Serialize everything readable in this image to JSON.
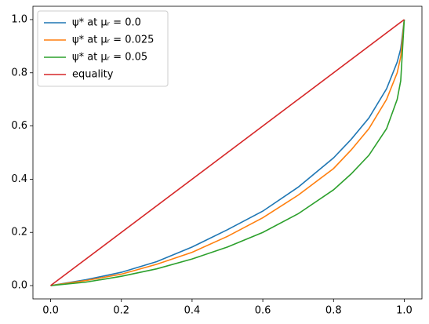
{
  "chart_data": {
    "type": "line",
    "series": [
      {
        "name": "ψ* at μᵣ = 0.0",
        "color": "#1f77b4",
        "x": [
          0,
          0.1,
          0.2,
          0.3,
          0.4,
          0.5,
          0.6,
          0.7,
          0.8,
          0.85,
          0.9,
          0.95,
          0.98,
          0.99,
          1.0
        ],
        "values": [
          0,
          0.022,
          0.05,
          0.09,
          0.145,
          0.21,
          0.28,
          0.37,
          0.48,
          0.55,
          0.63,
          0.74,
          0.84,
          0.89,
          1.0
        ]
      },
      {
        "name": "ψ* at μᵣ = 0.025",
        "color": "#ff7f0e",
        "x": [
          0,
          0.1,
          0.2,
          0.3,
          0.4,
          0.5,
          0.6,
          0.7,
          0.8,
          0.85,
          0.9,
          0.95,
          0.98,
          0.99,
          1.0
        ],
        "values": [
          0,
          0.019,
          0.043,
          0.08,
          0.125,
          0.185,
          0.255,
          0.34,
          0.44,
          0.51,
          0.59,
          0.7,
          0.8,
          0.86,
          1.0
        ]
      },
      {
        "name": "ψ* at μᵣ = 0.05",
        "color": "#2ca02c",
        "x": [
          0,
          0.1,
          0.2,
          0.3,
          0.4,
          0.5,
          0.6,
          0.7,
          0.8,
          0.85,
          0.9,
          0.95,
          0.98,
          0.99,
          1.0
        ],
        "values": [
          0,
          0.013,
          0.035,
          0.063,
          0.1,
          0.145,
          0.2,
          0.27,
          0.36,
          0.42,
          0.49,
          0.59,
          0.7,
          0.77,
          1.0
        ]
      },
      {
        "name": "equality",
        "color": "#d62728",
        "x": [
          0,
          1
        ],
        "values": [
          0,
          1
        ]
      }
    ],
    "xlim": [
      -0.05,
      1.05
    ],
    "ylim": [
      -0.05,
      1.05
    ],
    "xticks": [
      {
        "value": 0,
        "label": "0.0"
      },
      {
        "value": 0.2,
        "label": "0.2"
      },
      {
        "value": 0.4,
        "label": "0.4"
      },
      {
        "value": 0.6,
        "label": "0.6"
      },
      {
        "value": 0.8,
        "label": "0.8"
      },
      {
        "value": 1,
        "label": "1.0"
      }
    ],
    "yticks": [
      {
        "value": 0,
        "label": "0.0"
      },
      {
        "value": 0.2,
        "label": "0.2"
      },
      {
        "value": 0.4,
        "label": "0.4"
      },
      {
        "value": 0.6,
        "label": "0.6"
      },
      {
        "value": 0.8,
        "label": "0.8"
      },
      {
        "value": 1,
        "label": "1.0"
      }
    ],
    "legend": "upper left"
  }
}
